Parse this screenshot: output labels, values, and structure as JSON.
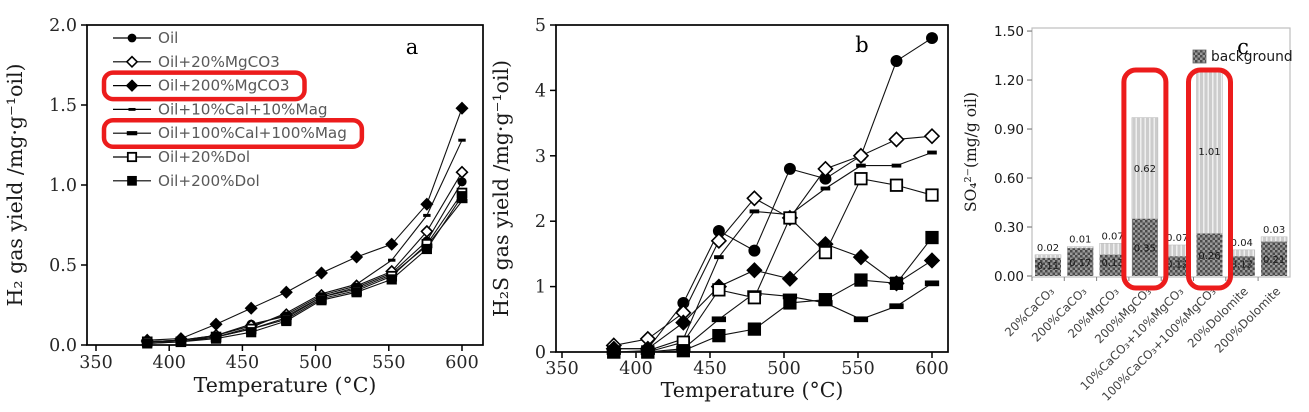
{
  "colors": {
    "line": "#111111",
    "tick_text": "#262626",
    "legend_text": "#595959",
    "highlight_red": "#ec1c1c",
    "bar_background_dark": "#4a4a4a",
    "bar_background_base": "#9a9a9a",
    "bar_so4_base": "#cccccc",
    "bar_so4_stripe": "#efefef",
    "plot_border_gray": "#bfbfbf",
    "category_text": "#404040"
  },
  "chart_data": [
    {
      "id": "a",
      "type": "line",
      "panel_label": "a",
      "xlabel": "Temperature (°C)",
      "ylabel": "H₂ gas yield /mg·g⁻¹oil)",
      "xlim": [
        350,
        600
      ],
      "ylim": [
        0,
        2
      ],
      "xticks": [
        350,
        400,
        450,
        500,
        550,
        600
      ],
      "xtick_labels": [
        "350",
        "400",
        "450",
        "500",
        "550",
        "600"
      ],
      "yticks": [
        0,
        0.5,
        1.0,
        1.5,
        2.0
      ],
      "ytick_labels": [
        "0.0",
        "0.5",
        "1.0",
        "1.5",
        "2.0"
      ],
      "x": [
        385,
        408,
        432,
        456,
        480,
        504,
        528,
        552,
        576,
        600
      ],
      "legend_position": "top-left-inside",
      "legend_highlight": [
        2,
        4
      ],
      "series": [
        {
          "name": "Oil",
          "marker": "circle-filled",
          "values": [
            0.02,
            0.03,
            0.06,
            0.13,
            0.18,
            0.3,
            0.36,
            0.45,
            0.65,
            1.02
          ]
        },
        {
          "name": "Oil+20%MgCO3",
          "marker": "diamond-open",
          "values": [
            0.02,
            0.03,
            0.06,
            0.12,
            0.19,
            0.31,
            0.37,
            0.46,
            0.71,
            1.08
          ]
        },
        {
          "name": "Oil+200%MgCO3",
          "marker": "diamond-filled",
          "values": [
            0.03,
            0.04,
            0.13,
            0.23,
            0.33,
            0.45,
            0.55,
            0.63,
            0.88,
            1.48
          ]
        },
        {
          "name": "Oil+10%Cal+10%Mag",
          "marker": "dash-small",
          "values": [
            0.02,
            0.03,
            0.05,
            0.11,
            0.2,
            0.32,
            0.38,
            0.53,
            0.81,
            1.28
          ]
        },
        {
          "name": "Oil+100%Cal+100%Mag",
          "marker": "dash-large",
          "values": [
            0.01,
            0.02,
            0.05,
            0.1,
            0.17,
            0.3,
            0.35,
            0.44,
            0.62,
            0.9
          ]
        },
        {
          "name": "Oil+20%Dol",
          "marker": "square-open",
          "values": [
            0.02,
            0.02,
            0.05,
            0.1,
            0.16,
            0.29,
            0.34,
            0.43,
            0.63,
            0.95
          ]
        },
        {
          "name": "Oil+200%Dol",
          "marker": "square-filled",
          "values": [
            0.01,
            0.02,
            0.04,
            0.08,
            0.15,
            0.28,
            0.33,
            0.41,
            0.6,
            0.93
          ]
        }
      ]
    },
    {
      "id": "b",
      "type": "line",
      "panel_label": "b",
      "xlabel": "Temperature (°C)",
      "ylabel": "H₂S gas yield /mg·g⁻¹oil)",
      "xlim": [
        350,
        600
      ],
      "ylim": [
        0,
        5
      ],
      "xticks": [
        350,
        400,
        450,
        500,
        550,
        600
      ],
      "xtick_labels": [
        "350",
        "400",
        "450",
        "500",
        "550",
        "600"
      ],
      "yticks": [
        0,
        1,
        2,
        3,
        4,
        5
      ],
      "ytick_labels": [
        "0",
        "1",
        "2",
        "3",
        "4",
        "5"
      ],
      "x": [
        385,
        408,
        432,
        456,
        480,
        504,
        528,
        552,
        576,
        600
      ],
      "legend_position": "none",
      "legend_highlight": [],
      "series": [
        {
          "name": "Oil",
          "marker": "circle-filled",
          "values": [
            0.05,
            0.05,
            0.75,
            1.85,
            1.55,
            2.8,
            2.65,
            3.0,
            4.45,
            4.8
          ]
        },
        {
          "name": "Oil+20%MgCO3",
          "marker": "diamond-open",
          "values": [
            0.1,
            0.2,
            0.6,
            1.7,
            2.35,
            2.05,
            2.8,
            3.0,
            3.25,
            3.3
          ]
        },
        {
          "name": "Oil+200%MgCO3",
          "marker": "diamond-filled",
          "values": [
            0.05,
            0.05,
            0.45,
            1.0,
            1.25,
            1.12,
            1.65,
            1.45,
            1.05,
            1.4
          ]
        },
        {
          "name": "Oil+10%Cal+10%Mag",
          "marker": "dash-small",
          "values": [
            0.0,
            0.02,
            0.2,
            1.45,
            2.15,
            2.1,
            2.5,
            2.85,
            2.85,
            3.05
          ]
        },
        {
          "name": "Oil+100%Cal+100%Mag",
          "marker": "dash-large",
          "values": [
            0.0,
            0.0,
            0.05,
            0.5,
            0.9,
            0.85,
            0.75,
            0.5,
            0.7,
            1.05
          ]
        },
        {
          "name": "Oil+20%Dol",
          "marker": "square-open",
          "values": [
            0.0,
            0.0,
            0.15,
            0.95,
            0.83,
            2.05,
            1.52,
            2.65,
            2.55,
            2.4
          ]
        },
        {
          "name": "Oil+200%Dol",
          "marker": "square-filled",
          "values": [
            0.0,
            0.0,
            0.02,
            0.25,
            0.35,
            0.75,
            0.8,
            1.1,
            1.05,
            1.75
          ]
        }
      ]
    },
    {
      "id": "c",
      "type": "bar",
      "panel_label": "c",
      "ylabel": "SO₄²⁻(mg/g oil)",
      "ylim": [
        0,
        1.5
      ],
      "yticks": [
        0,
        0.3,
        0.6,
        0.9,
        1.2,
        1.5
      ],
      "ytick_labels": [
        "0.00",
        "0.30",
        "0.60",
        "0.90",
        "1.20",
        "1.50"
      ],
      "legend_label": "background",
      "categories": [
        "20%CaCO₃",
        "200%CaCO₃",
        "20%MgCO₃",
        "200%MgCO₃",
        "10%CaCO₃+10%MgCO₃",
        "100%CaCO₃+100%MgCO₃",
        "20%Dolomite",
        "200%Dolomite"
      ],
      "series": [
        {
          "name": "background",
          "values": [
            0.11,
            0.17,
            0.13,
            0.35,
            0.12,
            0.26,
            0.12,
            0.21
          ]
        },
        {
          "name": "SO4",
          "values": [
            0.02,
            0.01,
            0.07,
            0.62,
            0.07,
            1.01,
            0.04,
            0.03
          ]
        }
      ],
      "bar_highlight": [
        3,
        5
      ]
    }
  ]
}
